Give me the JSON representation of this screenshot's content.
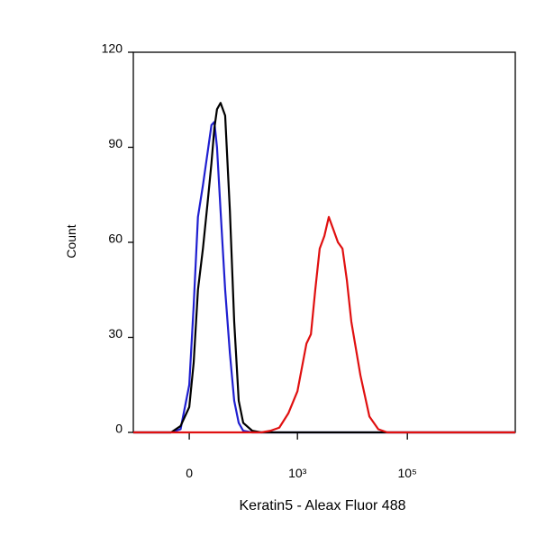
{
  "chart_data": {
    "type": "line",
    "x_label": "Keratin5 - Aleax Fluor 488",
    "y_label": "Count",
    "xscale": "asinh",
    "xscale_cofactor": 21.5,
    "xlim": [
      -111,
      9200000
    ],
    "xticks": [
      {
        "value": 0,
        "label": "0"
      },
      {
        "value": 1000,
        "label": "10³"
      },
      {
        "value": 100000,
        "label": "10⁵"
      }
    ],
    "ylim": [
      0,
      120
    ],
    "yticks": [
      0,
      30,
      60,
      90,
      120
    ],
    "x": [
      -111,
      -18,
      -8,
      0,
      4,
      8,
      13,
      18,
      23,
      27,
      31,
      37,
      46,
      57,
      69,
      84,
      102,
      150,
      219,
      320,
      467,
      682,
      1000,
      1457,
      1760,
      2110,
      2540,
      3090,
      3720,
      4510,
      5460,
      6600,
      7940,
      9550,
      14000,
      20400,
      29600,
      43200,
      63200,
      9200000
    ],
    "series": [
      {
        "color": "#1f1fd0",
        "values": [
          0,
          0,
          1,
          15,
          40,
          68,
          78,
          88,
          97,
          98,
          90,
          70,
          45,
          25,
          10,
          3,
          0.5,
          0,
          0,
          0,
          0,
          0,
          0,
          0,
          0,
          0,
          0,
          0,
          0,
          0,
          0,
          0,
          0,
          0,
          0,
          0,
          0,
          0,
          0,
          0
        ]
      },
      {
        "color": "#000000",
        "values": [
          0,
          0,
          2,
          8,
          22,
          45,
          58,
          72,
          85,
          96,
          102,
          104,
          100,
          70,
          35,
          10,
          3,
          0.5,
          0,
          0,
          0,
          0,
          0,
          0,
          0,
          0,
          0,
          0,
          0,
          0,
          0,
          0,
          0,
          0,
          0,
          0,
          0,
          0,
          0,
          0
        ]
      },
      {
        "color": "#e01010",
        "values": [
          0,
          0,
          0,
          0,
          0,
          0,
          0,
          0,
          0,
          0,
          0,
          0,
          0,
          0,
          0,
          0,
          0,
          0,
          0,
          0.5,
          1.5,
          6,
          13,
          28,
          31,
          45,
          58,
          62,
          68,
          64,
          60,
          58,
          48,
          35,
          18,
          5,
          1,
          0,
          0,
          0
        ]
      }
    ]
  }
}
